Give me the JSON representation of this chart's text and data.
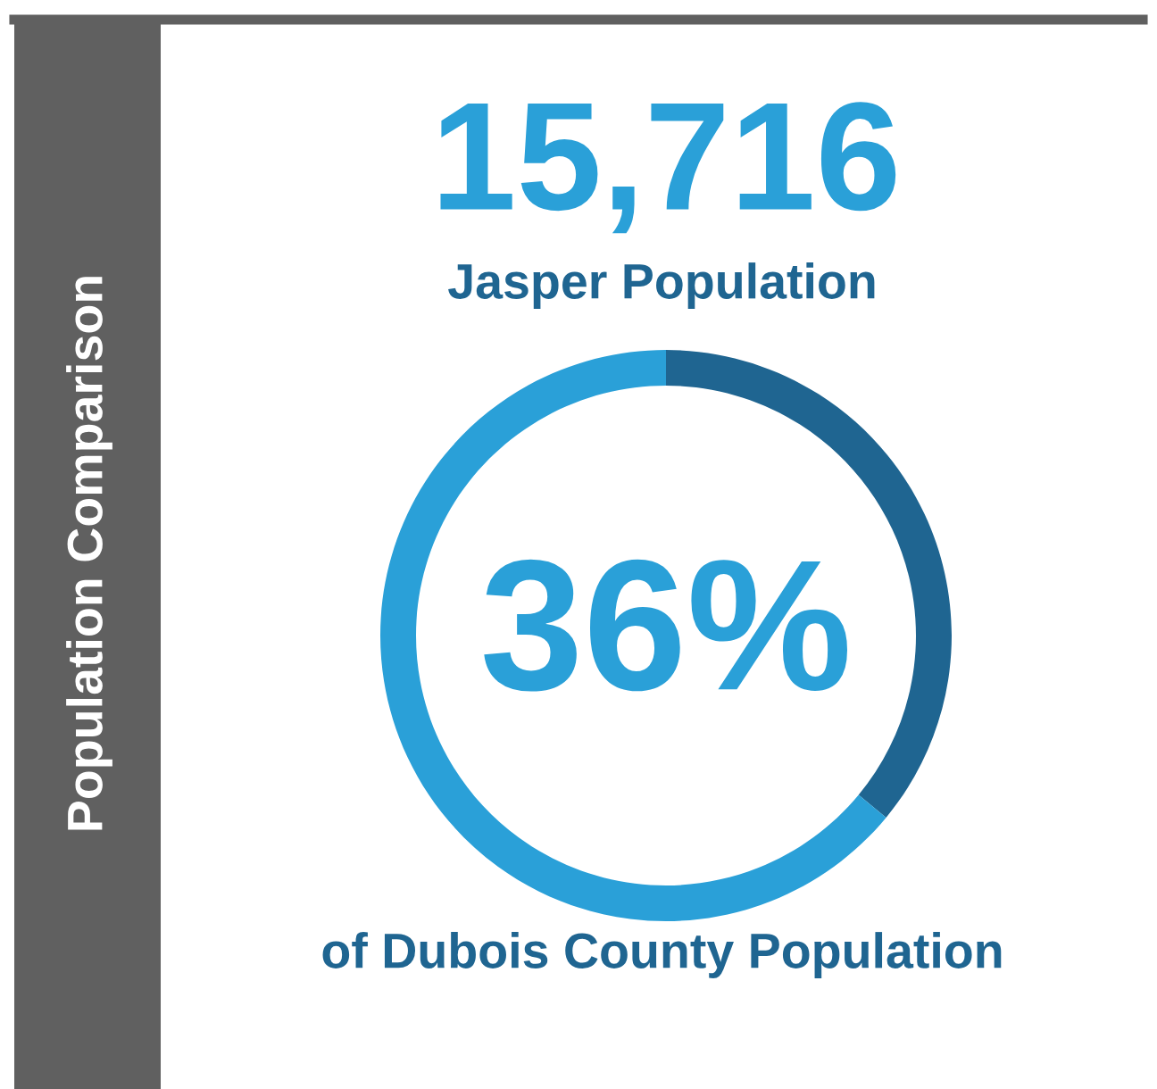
{
  "chart_data": {
    "type": "donut",
    "title": "Population Comparison",
    "categories": [
      null,
      null
    ],
    "values": [
      36,
      64
    ],
    "colors": [
      "#1f6591",
      "#2aa0d8"
    ],
    "value_labels": [
      "36%",
      null
    ],
    "annotations": [
      "15,716",
      "Jasper Population",
      "of Dubois County Population"
    ]
  }
}
